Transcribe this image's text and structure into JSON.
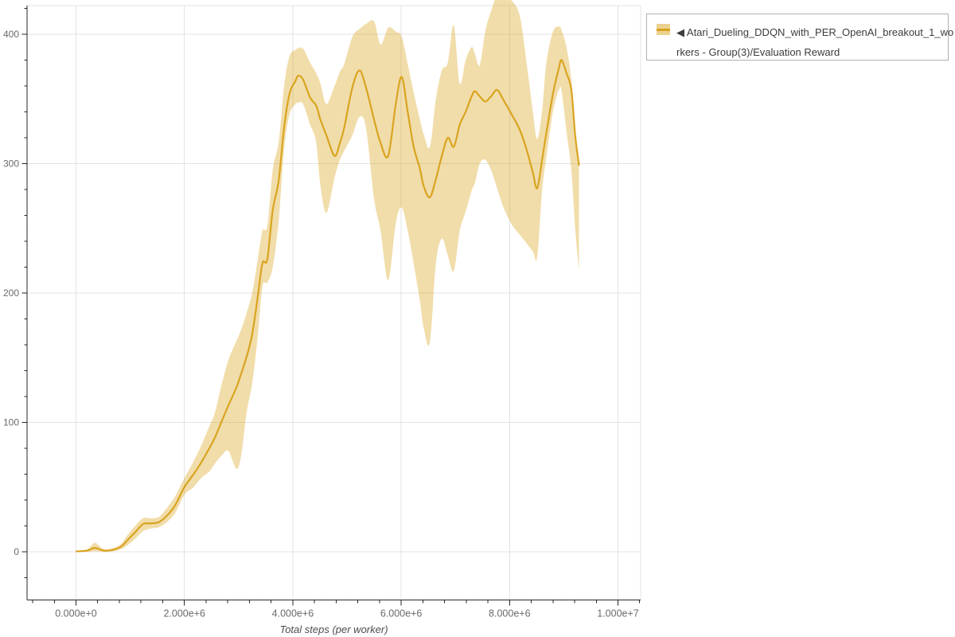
{
  "legend": {
    "marker": "band-with-line-swatch",
    "full_label": "◀ Atari_Dueling_DDQN_with_PER_OpenAI_breakout_1_workers - Group(3)/Evaluation Reward",
    "label_lines": [
      "◀ Atari_Dueling_DDQN_with_PER_OpenAI_breakout_1_wo",
      "rkers - Group(3)/Evaluation Reward"
    ]
  },
  "colors": {
    "line": "#d9a420",
    "band": "#daa520",
    "band_opacity": 0.38,
    "grid": "#e3e3e3",
    "outline": "#e3e3e3",
    "axis": "#262626",
    "tick_label": "#6a6a6a",
    "axis_label": "#4d4d4d",
    "legend_text": "#3c3c3c",
    "legend_border": "#b0b0b0",
    "background": "#ffffff"
  },
  "chart_data": {
    "type": "line",
    "title": "",
    "xlabel": "Total steps (per worker)",
    "ylabel": "",
    "grid": true,
    "legend_position": "outside-top-right",
    "x_unit": "steps (millions)",
    "xlim_millions": [
      -0.9,
      10.42
    ],
    "ylim": [
      -37,
      422
    ],
    "x_tick_values_millions": [
      0,
      2,
      4,
      6,
      8,
      10
    ],
    "x_tick_labels": [
      "0.000e+0",
      "2.000e+6",
      "4.000e+6",
      "6.000e+6",
      "8.000e+6",
      "1.000e+7"
    ],
    "x_minor_step_millions": 0.4,
    "y_tick_values": [
      0,
      100,
      200,
      300,
      400
    ],
    "y_tick_labels": [
      "0",
      "100",
      "200",
      "300",
      "400"
    ],
    "y_minor_step": 20,
    "series": [
      {
        "name": "Atari_Dueling_DDQN_with_PER_OpenAI_breakout_1_workers - Group(3)/Evaluation Reward",
        "kind": "mean-with-confidence-band",
        "x_millions": [
          0.01,
          0.21,
          0.35,
          0.51,
          0.68,
          0.83,
          0.95,
          1.09,
          1.24,
          1.39,
          1.53,
          1.68,
          1.83,
          2.0,
          2.17,
          2.31,
          2.46,
          2.56,
          2.68,
          2.81,
          2.96,
          3.05,
          3.15,
          3.25,
          3.35,
          3.44,
          3.53,
          3.63,
          3.74,
          3.84,
          3.94,
          4.05,
          4.1,
          4.19,
          4.32,
          4.43,
          4.51,
          4.62,
          4.77,
          4.87,
          4.95,
          5.1,
          5.23,
          5.35,
          5.5,
          5.62,
          5.76,
          5.9,
          6.01,
          6.12,
          6.23,
          6.34,
          6.42,
          6.53,
          6.64,
          6.75,
          6.86,
          6.97,
          7.08,
          7.19,
          7.3,
          7.36,
          7.45,
          7.55,
          7.66,
          7.77,
          7.89,
          8.04,
          8.19,
          8.32,
          8.43,
          8.51,
          8.6,
          8.68,
          8.8,
          8.91,
          8.96,
          9.05,
          9.14,
          9.21,
          9.28
        ],
        "mean": [
          0.3,
          1,
          3,
          1,
          1.5,
          4,
          9,
          15,
          21.5,
          22,
          23,
          28,
          36,
          50,
          60,
          69,
          80,
          88,
          100,
          113,
          127,
          138,
          151,
          168,
          196,
          223,
          226,
          264,
          287,
          328,
          354,
          364,
          368,
          365,
          351,
          345,
          334,
          322,
          306,
          316,
          328,
          359,
          372,
          359,
          334,
          316,
          306,
          346,
          367,
          340,
          313,
          297,
          282,
          274,
          288,
          306,
          320,
          313,
          330,
          340,
          352,
          356,
          352,
          348,
          352,
          357,
          349,
          338,
          326,
          310,
          293,
          281,
          303,
          324,
          354,
          374,
          380,
          370,
          357,
          322,
          299
        ],
        "lower": [
          0,
          0,
          0.5,
          0,
          0.5,
          2,
          5,
          10,
          16,
          18,
          19,
          23,
          30,
          44,
          50,
          57,
          62,
          68,
          74,
          78,
          64,
          75,
          108,
          130,
          165,
          205,
          208,
          220,
          256,
          311,
          338,
          346,
          347,
          346,
          330,
          317,
          283,
          262,
          289,
          303,
          310,
          322,
          336,
          328,
          273,
          248,
          210,
          254,
          266,
          248,
          223,
          195,
          172,
          162,
          223,
          242,
          229,
          217,
          248,
          263,
          279,
          285,
          300,
          303,
          295,
          281,
          266,
          253,
          245,
          238,
          232,
          228,
          279,
          305,
          340,
          357,
          356,
          325,
          295,
          250,
          217
        ],
        "upper": [
          0.5,
          2,
          7,
          2,
          3,
          6,
          13,
          20,
          26,
          26,
          27,
          34,
          43,
          57,
          70,
          82,
          97,
          107,
          128,
          148,
          163,
          172,
          185,
          200,
          225,
          248,
          252,
          295,
          317,
          360,
          383,
          388,
          389,
          389,
          378,
          370,
          362,
          346,
          360,
          371,
          377,
          398,
          404,
          408,
          410,
          392,
          405,
          402,
          398,
          377,
          355,
          335,
          322,
          313,
          350,
          372,
          378,
          407,
          362,
          380,
          390,
          385,
          376,
          402,
          418,
          430,
          432,
          426,
          414,
          376,
          340,
          319,
          341,
          378,
          402,
          406,
          403,
          390,
          365,
          328,
          300
        ]
      }
    ]
  }
}
